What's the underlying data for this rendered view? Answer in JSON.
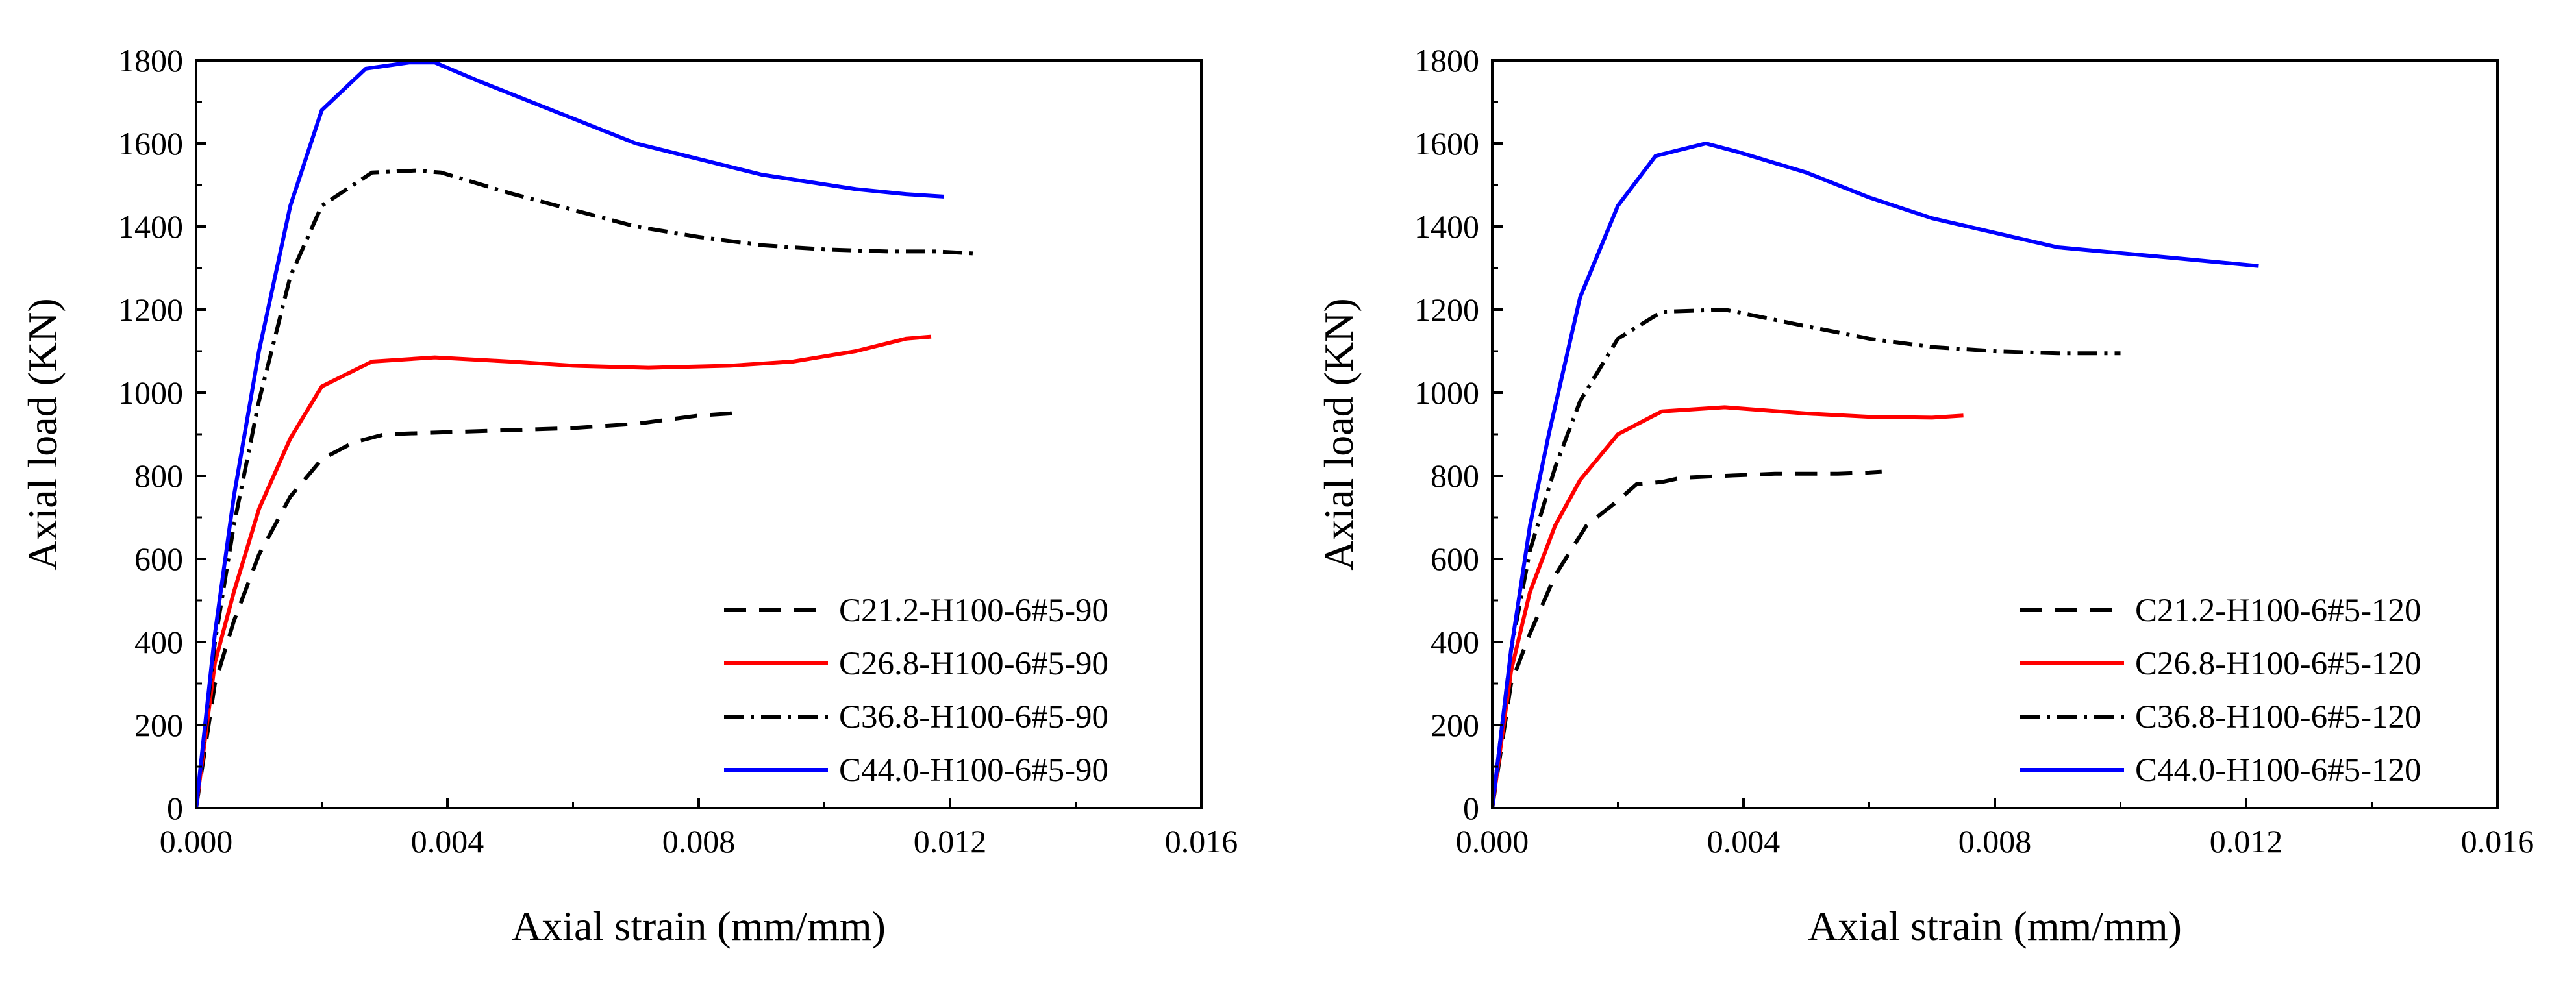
{
  "chart_data": [
    {
      "type": "line",
      "title": "",
      "xlabel": "Axial strain (mm/mm)",
      "ylabel": "Axial load (KN)",
      "xlim": [
        0,
        0.016
      ],
      "ylim": [
        0,
        1800
      ],
      "xticks": [
        "0.000",
        "0.004",
        "0.008",
        "0.012",
        "0.016"
      ],
      "yticks": [
        "0",
        "200",
        "400",
        "600",
        "800",
        "1000",
        "1200",
        "1400",
        "1600",
        "1800"
      ],
      "legend_position": "bottom-right",
      "series": [
        {
          "name": "C21.2-H100-6#5-90",
          "color": "#000000",
          "dash": "dashed",
          "x": [
            0,
            0.0003,
            0.0006,
            0.001,
            0.0015,
            0.002,
            0.0025,
            0.003,
            0.004,
            0.005,
            0.006,
            0.007,
            0.008,
            0.0085,
            0.0087
          ],
          "y": [
            0,
            300,
            450,
            610,
            750,
            840,
            880,
            900,
            905,
            910,
            915,
            925,
            945,
            950,
            960
          ]
        },
        {
          "name": "C26.8-H100-6#5-90",
          "color": "#ff0000",
          "dash": "solid",
          "x": [
            0,
            0.0003,
            0.0006,
            0.001,
            0.0015,
            0.002,
            0.0028,
            0.0038,
            0.005,
            0.006,
            0.0072,
            0.0085,
            0.0095,
            0.0105,
            0.0113,
            0.0117
          ],
          "y": [
            0,
            350,
            520,
            720,
            890,
            1015,
            1075,
            1085,
            1075,
            1065,
            1060,
            1065,
            1075,
            1100,
            1130,
            1135
          ]
        },
        {
          "name": "C36.8-H100-6#5-90",
          "color": "#000000",
          "dash": "dashdot",
          "x": [
            0,
            0.0003,
            0.0006,
            0.001,
            0.0015,
            0.002,
            0.0028,
            0.0035,
            0.0039,
            0.005,
            0.006,
            0.007,
            0.008,
            0.009,
            0.01,
            0.011,
            0.0118,
            0.0124
          ],
          "y": [
            0,
            400,
            680,
            980,
            1280,
            1450,
            1530,
            1535,
            1530,
            1480,
            1440,
            1400,
            1375,
            1355,
            1345,
            1340,
            1340,
            1335
          ]
        },
        {
          "name": "C44.0-H100-6#5-90",
          "color": "#0000ff",
          "dash": "solid",
          "x": [
            0,
            0.0003,
            0.0006,
            0.001,
            0.0015,
            0.002,
            0.0027,
            0.0034,
            0.0038,
            0.0045,
            0.0055,
            0.007,
            0.009,
            0.0105,
            0.0113,
            0.0119
          ],
          "y": [
            0,
            420,
            750,
            1100,
            1450,
            1680,
            1780,
            1795,
            1795,
            1750,
            1690,
            1600,
            1525,
            1490,
            1478,
            1472
          ]
        }
      ]
    },
    {
      "type": "line",
      "title": "",
      "xlabel": "Axial strain (mm/mm)",
      "ylabel": "Axial load (KN)",
      "xlim": [
        0,
        0.016
      ],
      "ylim": [
        0,
        1800
      ],
      "xticks": [
        "0.000",
        "0.004",
        "0.008",
        "0.012",
        "0.016"
      ],
      "yticks": [
        "0",
        "200",
        "400",
        "600",
        "800",
        "1000",
        "1200",
        "1400",
        "1600",
        "1800"
      ],
      "legend_position": "bottom-right",
      "series": [
        {
          "name": "C21.2-H100-6#5-120",
          "color": "#000000",
          "dash": "dashed",
          "x": [
            0,
            0.0003,
            0.0006,
            0.001,
            0.0015,
            0.002,
            0.0023,
            0.0027,
            0.003,
            0.0037,
            0.0045,
            0.0055,
            0.006,
            0.0062
          ],
          "y": [
            0,
            300,
            420,
            560,
            680,
            740,
            780,
            785,
            795,
            800,
            805,
            805,
            808,
            810
          ]
        },
        {
          "name": "C26.8-H100-6#5-120",
          "color": "#ff0000",
          "dash": "solid",
          "x": [
            0,
            0.0003,
            0.0006,
            0.001,
            0.0014,
            0.002,
            0.0027,
            0.0037,
            0.005,
            0.006,
            0.007,
            0.0075
          ],
          "y": [
            0,
            330,
            520,
            680,
            790,
            900,
            955,
            965,
            950,
            942,
            940,
            945
          ]
        },
        {
          "name": "C36.8-H100-6#5-120",
          "color": "#000000",
          "dash": "dashdot",
          "x": [
            0,
            0.0003,
            0.0006,
            0.001,
            0.0014,
            0.002,
            0.0027,
            0.0037,
            0.005,
            0.006,
            0.007,
            0.008,
            0.009,
            0.0095,
            0.01
          ],
          "y": [
            0,
            380,
            620,
            820,
            980,
            1130,
            1195,
            1200,
            1160,
            1130,
            1110,
            1100,
            1095,
            1095,
            1095
          ]
        },
        {
          "name": "C44.0-H100-6#5-120",
          "color": "#0000ff",
          "dash": "solid",
          "x": [
            0,
            0.0003,
            0.0006,
            0.0009,
            0.0014,
            0.002,
            0.0026,
            0.0034,
            0.0039,
            0.005,
            0.006,
            0.007,
            0.009,
            0.0108,
            0.0122
          ],
          "y": [
            0,
            380,
            680,
            900,
            1230,
            1450,
            1570,
            1600,
            1580,
            1530,
            1470,
            1420,
            1350,
            1325,
            1305
          ]
        }
      ]
    }
  ]
}
